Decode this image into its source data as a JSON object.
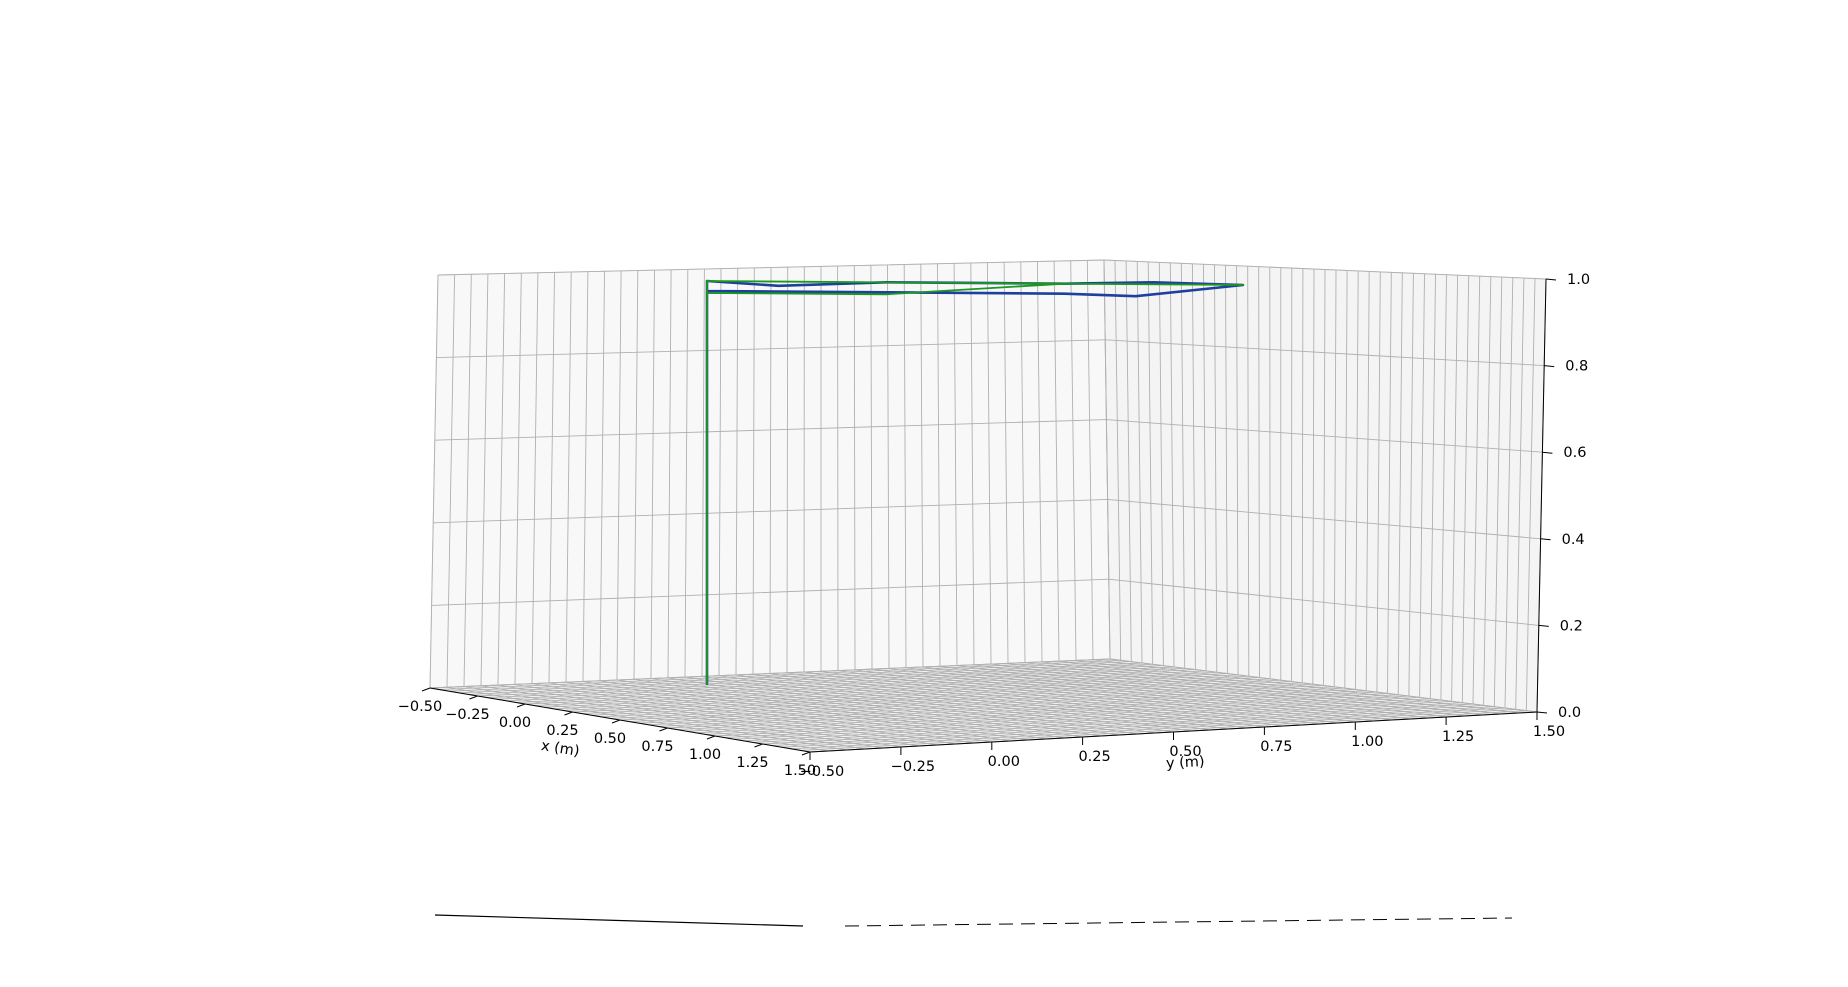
{
  "chart_data": {
    "type": "line",
    "projection": "3d",
    "title": "",
    "xlabel": "x (m)",
    "ylabel": "y (m)",
    "zlabel": "",
    "xlim": [
      -0.5,
      1.5
    ],
    "ylim": [
      -0.5,
      1.5
    ],
    "zlim": [
      0.0,
      1.0
    ],
    "xticks": [
      "−0.50",
      "−0.25",
      "0.00",
      "0.25",
      "0.50",
      "0.75",
      "1.00",
      "1.25",
      "1.50"
    ],
    "yticks": [
      "−0.50",
      "−0.25",
      "0.00",
      "0.25",
      "0.50",
      "0.75",
      "1.00",
      "1.25",
      "1.50"
    ],
    "zticks": [
      "0.0",
      "0.2",
      "0.4",
      "0.6",
      "0.8",
      "1.0"
    ],
    "grid": true,
    "legend": "none",
    "series": [
      {
        "color": "#1f3f9f",
        "points": [
          [
            0.0,
            0.0,
            0.06
          ],
          [
            0.0,
            0.0,
            1.0
          ],
          [
            0.2,
            0.2,
            0.99
          ],
          [
            0.5,
            0.5,
            1.0
          ],
          [
            0.8,
            0.8,
            1.0
          ],
          [
            1.0,
            1.0,
            1.0
          ],
          [
            1.25,
            1.2,
            1.0
          ],
          [
            1.5,
            1.5,
            1.0
          ],
          [
            1.2,
            1.25,
            1.0
          ],
          [
            1.0,
            1.0,
            1.0
          ],
          [
            0.5,
            0.5,
            1.0
          ],
          [
            0.0,
            0.0,
            1.0
          ]
        ]
      },
      {
        "color": "#1a9a1a",
        "points": [
          [
            0.0,
            0.0,
            0.06
          ],
          [
            0.0,
            0.0,
            1.0
          ],
          [
            0.25,
            0.25,
            1.0
          ],
          [
            0.75,
            0.75,
            1.0
          ],
          [
            1.5,
            1.5,
            1.0
          ],
          [
            1.0,
            1.0,
            1.0
          ],
          [
            0.5,
            0.5,
            1.0
          ],
          [
            0.0,
            0.0,
            1.0
          ]
        ]
      }
    ],
    "colorbar_fragment": {
      "solid": true,
      "dashed": true
    }
  }
}
